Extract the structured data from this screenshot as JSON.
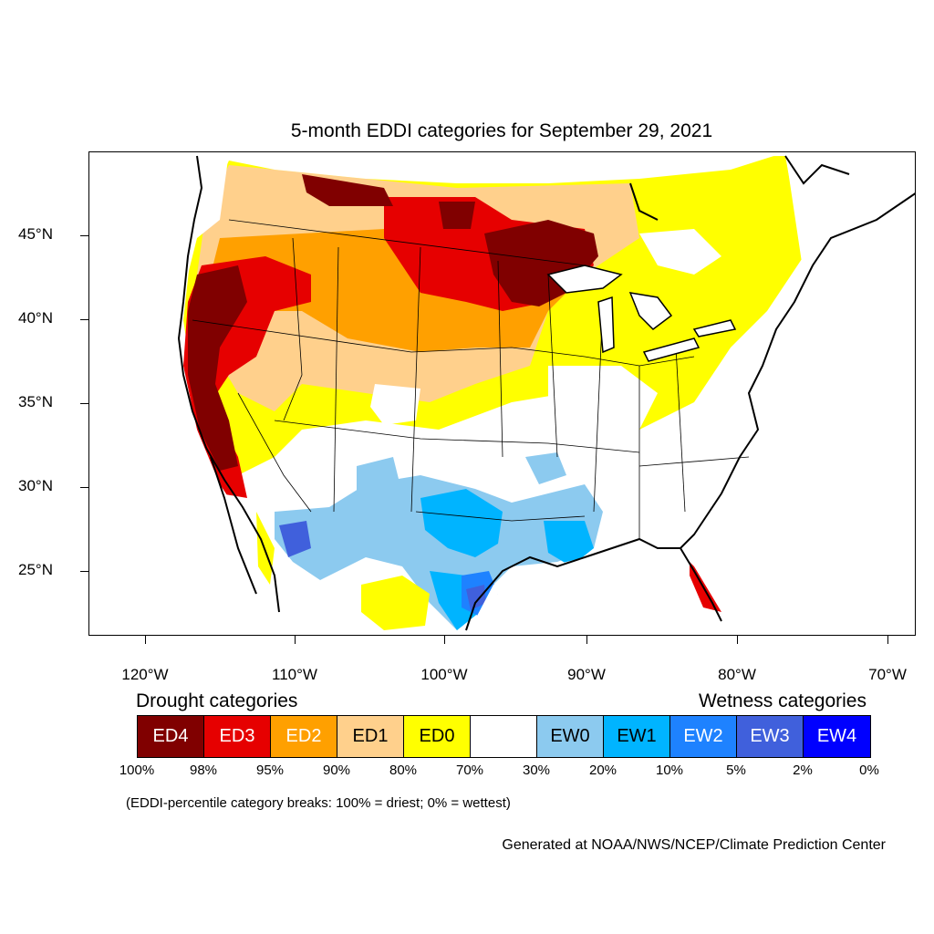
{
  "title": "5-month EDDI categories for September 29, 2021",
  "axes": {
    "lat_labels": [
      "45°N",
      "40°N",
      "35°N",
      "30°N",
      "25°N"
    ],
    "lon_labels": [
      "120°W",
      "110°W",
      "100°W",
      "90°W",
      "80°W",
      "70°W"
    ]
  },
  "legend": {
    "drought_heading": "Drought categories",
    "wetness_heading": "Wetness categories",
    "categories": [
      {
        "label": "ED4",
        "color": "#800000",
        "text_color": "#ffffff"
      },
      {
        "label": "ED3",
        "color": "#e60000",
        "text_color": "#ffffff"
      },
      {
        "label": "ED2",
        "color": "#ffa000",
        "text_color": "#ffffff"
      },
      {
        "label": "ED1",
        "color": "#ffd08c",
        "text_color": "#000000"
      },
      {
        "label": "ED0",
        "color": "#ffff00",
        "text_color": "#000000"
      },
      {
        "label": "",
        "color": "#ffffff",
        "text_color": "#000000"
      },
      {
        "label": "EW0",
        "color": "#8ccaef",
        "text_color": "#000000"
      },
      {
        "label": "EW1",
        "color": "#00b4ff",
        "text_color": "#000000"
      },
      {
        "label": "EW2",
        "color": "#1e82ff",
        "text_color": "#ffffff"
      },
      {
        "label": "EW3",
        "color": "#4060dc",
        "text_color": "#ffffff"
      },
      {
        "label": "EW4",
        "color": "#0000ff",
        "text_color": "#ffffff"
      }
    ],
    "breaks": [
      "100%",
      "98%",
      "95%",
      "90%",
      "80%",
      "70%",
      "30%",
      "20%",
      "10%",
      "5%",
      "2%",
      "0%"
    ]
  },
  "note": "(EDDI-percentile category breaks: 100% = driest; 0% = wettest)",
  "credit": "Generated at NOAA/NWS/NCEP/Climate Prediction Center"
}
